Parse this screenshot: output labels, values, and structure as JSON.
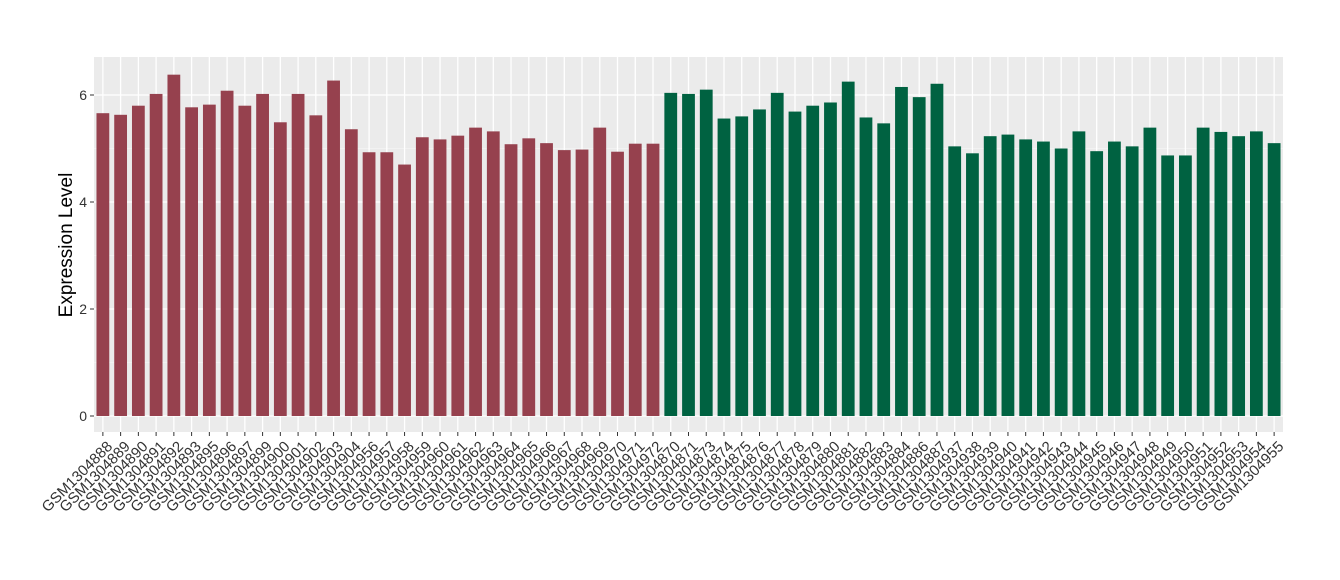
{
  "chart_data": {
    "type": "bar",
    "title": "",
    "xlabel": "",
    "ylabel": "Expression Level",
    "ylim": [
      0,
      6.6
    ],
    "yticks": [
      0,
      2,
      4,
      6
    ],
    "grid": true,
    "series": [
      {
        "color": "#96414E",
        "categories": [
          "GSM1304888",
          "GSM1304889",
          "GSM1304890",
          "GSM1304891",
          "GSM1304892",
          "GSM1304893",
          "GSM1304895",
          "GSM1304896",
          "GSM1304897",
          "GSM1304899",
          "GSM1304900",
          "GSM1304901",
          "GSM1304902",
          "GSM1304903",
          "GSM1304904",
          "GSM1304956",
          "GSM1304957",
          "GSM1304958",
          "GSM1304959",
          "GSM1304960",
          "GSM1304961",
          "GSM1304962",
          "GSM1304963",
          "GSM1304964",
          "GSM1304965",
          "GSM1304966",
          "GSM1304967",
          "GSM1304968",
          "GSM1304969",
          "GSM1304970",
          "GSM1304971",
          "GSM1304972"
        ],
        "values": [
          5.66,
          5.63,
          5.8,
          6.02,
          6.38,
          5.77,
          5.82,
          6.08,
          5.8,
          6.02,
          5.49,
          6.02,
          5.62,
          6.27,
          5.36,
          4.93,
          4.93,
          4.7,
          5.21,
          5.17,
          5.24,
          5.39,
          5.32,
          5.08,
          5.19,
          5.1,
          4.97,
          4.98,
          5.39,
          4.94,
          5.09,
          5.09
        ]
      },
      {
        "color": "#006241",
        "categories": [
          "GSM1304870",
          "GSM1304871",
          "GSM1304873",
          "GSM1304874",
          "GSM1304875",
          "GSM1304876",
          "GSM1304877",
          "GSM1304878",
          "GSM1304879",
          "GSM1304880",
          "GSM1304881",
          "GSM1304882",
          "GSM1304883",
          "GSM1304884",
          "GSM1304886",
          "GSM1304887",
          "GSM1304937",
          "GSM1304938",
          "GSM1304939",
          "GSM1304940",
          "GSM1304941",
          "GSM1304942",
          "GSM1304943",
          "GSM1304944",
          "GSM1304945",
          "GSM1304946",
          "GSM1304947",
          "GSM1304948",
          "GSM1304949",
          "GSM1304950",
          "GSM1304951",
          "GSM1304952",
          "GSM1304953",
          "GSM1304954",
          "GSM1304955"
        ],
        "values": [
          6.04,
          6.02,
          6.1,
          5.56,
          5.6,
          5.73,
          6.04,
          5.69,
          5.8,
          5.86,
          6.25,
          5.58,
          5.47,
          6.15,
          5.96,
          6.21,
          5.04,
          4.91,
          5.23,
          5.26,
          5.17,
          5.13,
          5.0,
          5.32,
          4.95,
          5.13,
          5.04,
          5.39,
          4.87,
          4.87,
          5.39,
          5.31,
          5.23,
          5.32,
          5.1
        ]
      }
    ]
  }
}
